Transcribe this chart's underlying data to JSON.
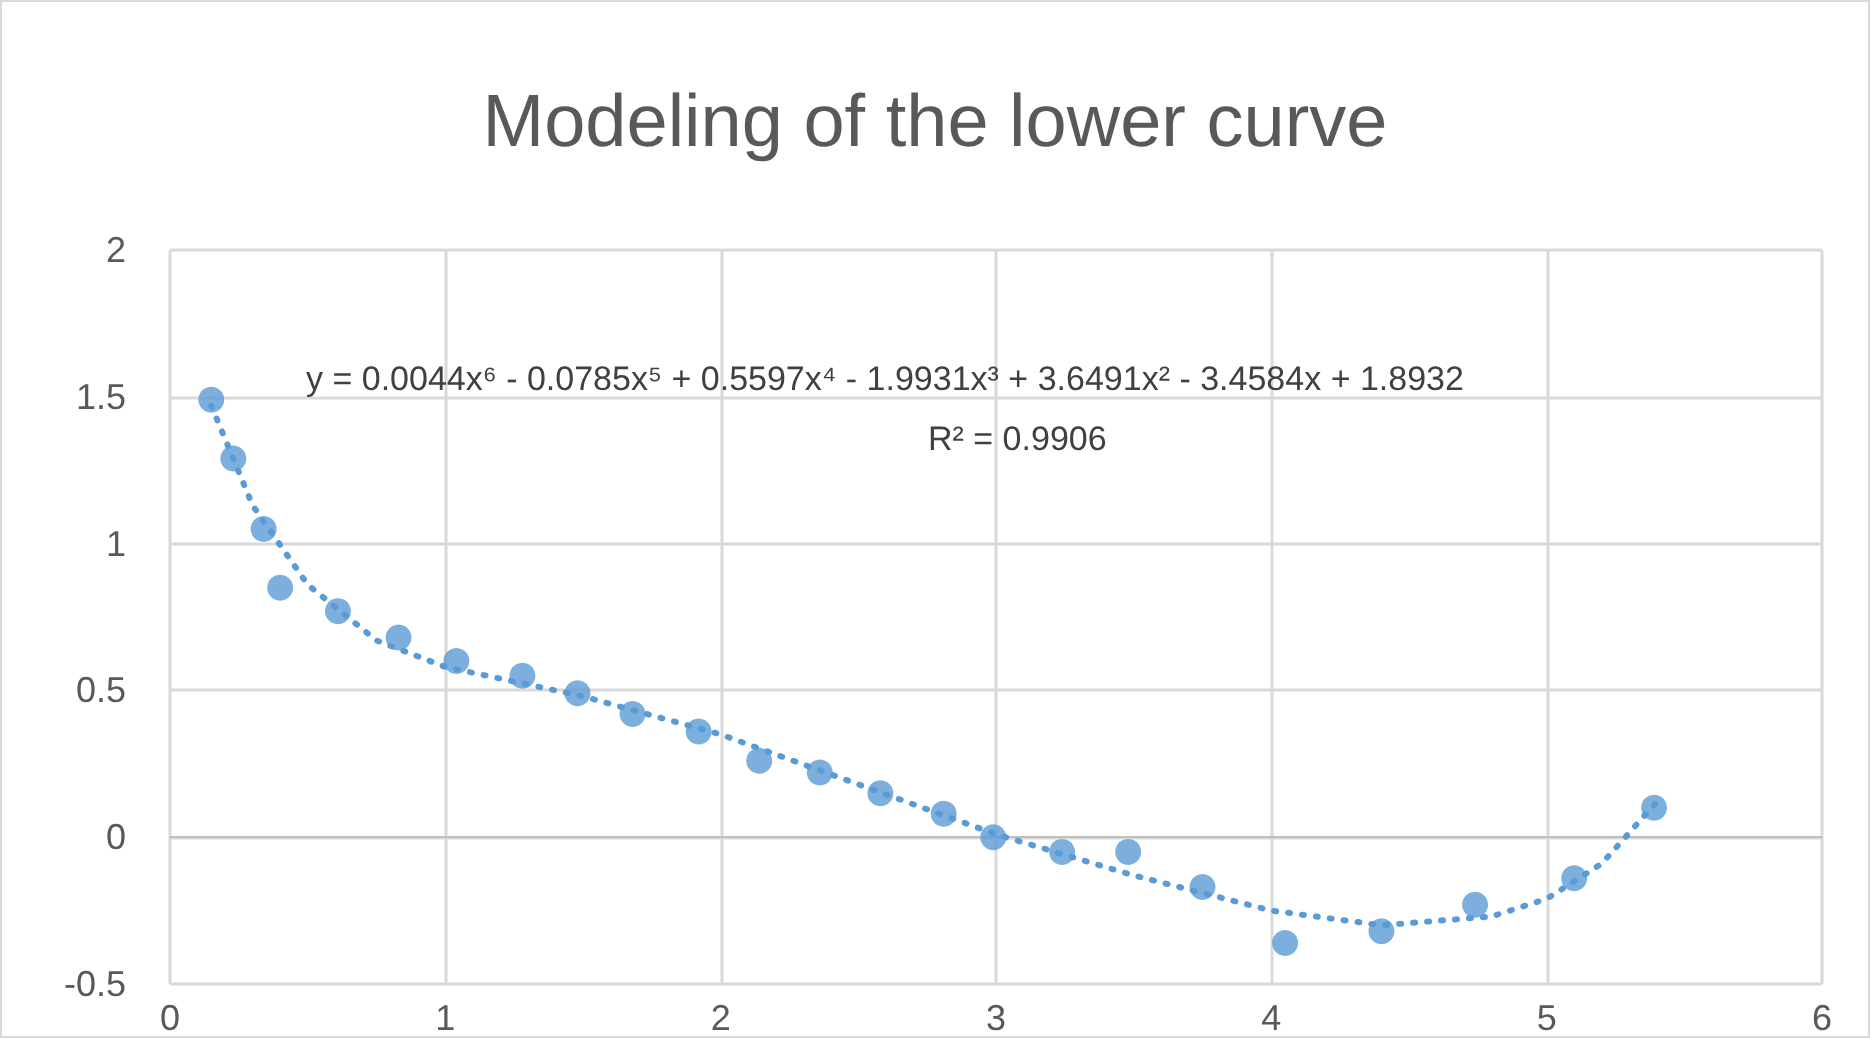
{
  "chart_data": {
    "type": "scatter",
    "title": "Modeling of the lower curve",
    "annotations": [
      "y = 0.0044x⁶ - 0.0785x⁵ + 0.5597x⁴ - 1.9931x³ + 3.6491x² - 3.4584x + 1.8932",
      "R² = 0.9906"
    ],
    "series": [
      {
        "color": "#5b9bd5",
        "marker": "circle",
        "x": [
          0.15,
          0.23,
          0.34,
          0.4,
          0.61,
          0.83,
          1.04,
          1.28,
          1.48,
          1.68,
          1.92,
          2.14,
          2.36,
          2.58,
          2.81,
          2.99,
          3.24,
          3.48,
          3.75,
          4.05,
          4.4,
          4.74,
          5.1,
          5.39
        ],
        "values": [
          1.49,
          1.29,
          1.05,
          0.85,
          0.77,
          0.68,
          0.6,
          0.55,
          0.49,
          0.42,
          0.36,
          0.26,
          0.22,
          0.15,
          0.08,
          0.0,
          -0.05,
          -0.05,
          -0.17,
          -0.36,
          -0.32,
          -0.23,
          -0.14,
          0.1
        ]
      },
      {
        "type": "line",
        "color": "#5b9bd5",
        "line_style": "dotted",
        "marker": "none",
        "x": [
          0.15,
          0.3,
          0.5,
          0.75,
          1,
          1.5,
          2,
          2.5,
          3,
          3.5,
          4,
          4.4,
          4.8,
          5.0,
          5.2,
          5.4
        ],
        "values": [
          1.47,
          1.13,
          0.86,
          0.67,
          0.58,
          0.48,
          0.35,
          0.18,
          0.01,
          -0.13,
          -0.25,
          -0.3,
          -0.27,
          -0.21,
          -0.09,
          0.12
        ]
      }
    ],
    "xlim": [
      0,
      6
    ],
    "xticks": [
      0,
      1,
      2,
      3,
      4,
      5,
      6
    ],
    "ylim": [
      -0.5,
      2
    ],
    "yticks": [
      -0.5,
      0,
      0.5,
      1,
      1.5,
      2
    ],
    "grid": true
  }
}
